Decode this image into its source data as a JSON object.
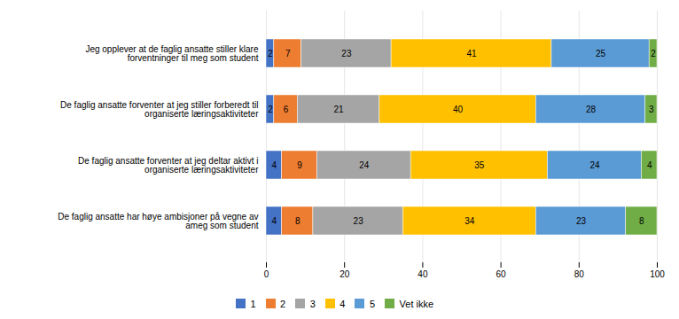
{
  "chart_data": {
    "type": "bar",
    "orientation": "horizontal",
    "stacked": true,
    "categories": [
      "De faglig ansatte har høye ambisjoner på vegne av\nameg som student",
      "De faglig ansatte forventer at jeg deltar aktivt i\norganiserte læringsaktiviteter",
      "De faglig ansatte forventer at jeg stiller forberedt til\norganiserte læringsaktiviteter",
      "Jeg opplever at de faglig ansatte stiller klare\nforventninger til meg som student"
    ],
    "series": [
      {
        "name": "1",
        "color": "#4472C4",
        "values": [
          4,
          4,
          2,
          2
        ]
      },
      {
        "name": "2",
        "color": "#ED7D31",
        "values": [
          8,
          9,
          6,
          7
        ]
      },
      {
        "name": "3",
        "color": "#A5A5A5",
        "values": [
          23,
          24,
          21,
          23
        ]
      },
      {
        "name": "4",
        "color": "#FFC000",
        "values": [
          34,
          35,
          40,
          41
        ]
      },
      {
        "name": "5",
        "color": "#5B9BD5",
        "values": [
          23,
          24,
          28,
          25
        ]
      },
      {
        "name": "Vet ikke",
        "color": "#70AD47",
        "values": [
          8,
          4,
          3,
          2
        ]
      }
    ],
    "xlim": [
      0,
      100
    ],
    "xticks": [
      0,
      20,
      40,
      60,
      80,
      100
    ],
    "grid": true,
    "data_labels": true,
    "legend": "bottom"
  }
}
